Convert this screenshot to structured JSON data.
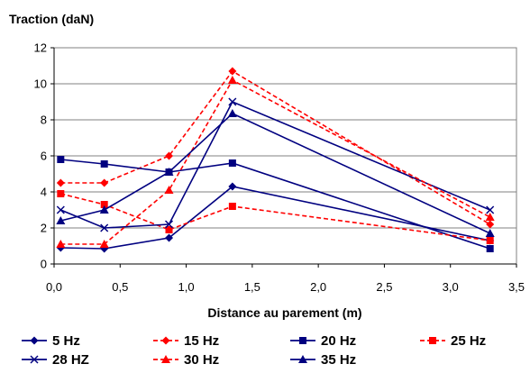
{
  "chart_data": {
    "type": "line",
    "ylabel": "Traction (daN)",
    "xlabel": "Distance au parement (m)",
    "xlim": [
      0,
      3.5
    ],
    "ylim": [
      0,
      12
    ],
    "x_ticks": [
      "0,0",
      "0,5",
      "1,0",
      "1,5",
      "2,0",
      "2,5",
      "3,0",
      "3,5"
    ],
    "y_ticks": [
      "0",
      "2",
      "4",
      "6",
      "8",
      "10",
      "12"
    ],
    "grid": "horizontal",
    "legend_position": "bottom",
    "colors": {
      "blue": "#000080",
      "red": "#ff0000"
    },
    "series": [
      {
        "name": "5 Hz",
        "color": "#000080",
        "dash": "solid",
        "marker": "diamond",
        "x": [
          0.05,
          0.38,
          0.87,
          1.35,
          3.3
        ],
        "y": [
          0.9,
          0.85,
          1.45,
          4.3,
          1.3
        ]
      },
      {
        "name": "15 Hz",
        "color": "#ff0000",
        "dash": "dashed",
        "marker": "diamond",
        "x": [
          0.05,
          0.38,
          0.87,
          1.35,
          3.3
        ],
        "y": [
          4.5,
          4.5,
          6.0,
          10.7,
          2.2
        ]
      },
      {
        "name": "20 Hz",
        "color": "#000080",
        "dash": "solid",
        "marker": "square",
        "x": [
          0.05,
          0.38,
          0.87,
          1.35,
          3.3
        ],
        "y": [
          5.8,
          5.55,
          5.1,
          5.6,
          0.85
        ]
      },
      {
        "name": "25 Hz",
        "color": "#ff0000",
        "dash": "dashed",
        "marker": "square",
        "x": [
          0.05,
          0.38,
          0.87,
          1.35,
          3.3
        ],
        "y": [
          3.9,
          3.3,
          1.9,
          3.2,
          1.3
        ]
      },
      {
        "name": "28 HZ",
        "color": "#000080",
        "dash": "solid",
        "marker": "x",
        "x": [
          0.05,
          0.38,
          0.87,
          1.35,
          3.3
        ],
        "y": [
          3.0,
          2.0,
          2.2,
          9.0,
          3.0
        ]
      },
      {
        "name": "30 Hz",
        "color": "#ff0000",
        "dash": "dashed",
        "marker": "triangle",
        "x": [
          0.05,
          0.38,
          0.87,
          1.35,
          3.3
        ],
        "y": [
          1.1,
          1.1,
          4.1,
          10.2,
          2.6
        ]
      },
      {
        "name": "35 Hz",
        "color": "#000080",
        "dash": "solid",
        "marker": "triangle",
        "x": [
          0.05,
          0.38,
          0.87,
          1.35,
          3.3
        ],
        "y": [
          2.4,
          3.0,
          5.1,
          8.35,
          1.7
        ]
      }
    ]
  }
}
